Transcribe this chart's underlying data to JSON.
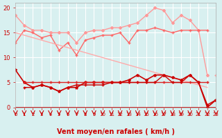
{
  "x": [
    0,
    1,
    2,
    3,
    4,
    5,
    6,
    7,
    8,
    9,
    10,
    11,
    12,
    13,
    14,
    15,
    16,
    17,
    18,
    19,
    20,
    21,
    22,
    23
  ],
  "series": [
    {
      "name": "line1_light",
      "color": "#ff9999",
      "linewidth": 1.0,
      "marker": "D",
      "markersize": 2,
      "y": [
        18.5,
        16.5,
        15.5,
        15.5,
        15.0,
        15.0,
        15.0,
        13.0,
        15.0,
        15.5,
        15.5,
        16.0,
        16.0,
        16.5,
        17.0,
        18.5,
        20.0,
        19.5,
        17.0,
        18.5,
        17.5,
        15.5,
        6.5,
        null
      ]
    },
    {
      "name": "line2_light",
      "color": "#ff9999",
      "linewidth": 1.0,
      "marker": "+",
      "markersize": 3,
      "y": [
        null,
        null,
        null,
        null,
        null,
        null,
        null,
        null,
        null,
        null,
        null,
        null,
        null,
        null,
        null,
        null,
        null,
        null,
        null,
        null,
        null,
        null,
        null,
        6.5
      ]
    },
    {
      "name": "line3_medium",
      "color": "#ff6666",
      "linewidth": 1.0,
      "marker": "+",
      "markersize": 3,
      "y": [
        13.0,
        15.5,
        15.0,
        14.0,
        14.5,
        11.5,
        13.0,
        10.5,
        13.5,
        14.0,
        14.5,
        14.5,
        15.0,
        13.0,
        15.5,
        15.5,
        16.0,
        15.5,
        15.0,
        15.5,
        15.5,
        15.5,
        15.5,
        null
      ]
    },
    {
      "name": "line4_diag",
      "color": "#ffaaaa",
      "linewidth": 1.0,
      "marker": null,
      "markersize": 0,
      "y": [
        15.0,
        14.5,
        14.0,
        13.5,
        13.0,
        12.5,
        12.0,
        11.5,
        11.0,
        10.5,
        10.0,
        9.5,
        9.0,
        8.5,
        8.0,
        7.5,
        7.0,
        6.5,
        6.0,
        5.5,
        5.0,
        4.5,
        4.0,
        null
      ]
    },
    {
      "name": "line5_dark_upper",
      "color": "#cc0000",
      "linewidth": 1.2,
      "marker": "*",
      "markersize": 3,
      "y": [
        7.5,
        5.0,
        4.0,
        4.5,
        4.0,
        3.2,
        4.0,
        4.0,
        5.0,
        5.0,
        5.0,
        5.0,
        5.0,
        5.5,
        6.5,
        5.5,
        6.5,
        6.5,
        6.0,
        5.5,
        6.5,
        5.0,
        0.0,
        1.5
      ]
    },
    {
      "name": "line6_dark_mid",
      "color": "#dd2222",
      "linewidth": 1.0,
      "marker": "+",
      "markersize": 3,
      "y": [
        null,
        5.0,
        5.0,
        5.0,
        5.0,
        5.0,
        5.0,
        5.0,
        5.0,
        5.0,
        5.0,
        5.0,
        5.0,
        5.0,
        5.0,
        5.0,
        5.0,
        5.0,
        5.0,
        5.0,
        5.0,
        5.0,
        5.0,
        null
      ]
    },
    {
      "name": "line7_dark_lower",
      "color": "#cc0000",
      "linewidth": 1.0,
      "marker": "+",
      "markersize": 3,
      "y": [
        null,
        4.0,
        4.0,
        4.5,
        4.0,
        3.2,
        4.0,
        4.5,
        4.5,
        4.5,
        4.5,
        5.0,
        5.0,
        5.0,
        5.0,
        5.0,
        5.0,
        6.5,
        5.0,
        5.0,
        6.5,
        5.0,
        0.5,
        1.5
      ]
    }
  ],
  "wind_arrows": [
    0,
    1,
    2,
    3,
    4,
    5,
    6,
    7,
    8,
    9,
    10,
    11,
    12,
    13,
    14,
    15,
    16,
    17,
    18,
    19,
    20,
    21,
    22,
    23
  ],
  "xlabel": "Vent moyen/en rafales ( km/h )",
  "ylim": [
    0,
    21
  ],
  "xlim": [
    0,
    23
  ],
  "yticks": [
    0,
    5,
    10,
    15,
    20
  ],
  "xticks": [
    0,
    1,
    2,
    3,
    4,
    5,
    6,
    7,
    8,
    9,
    10,
    11,
    12,
    13,
    14,
    15,
    16,
    17,
    18,
    19,
    20,
    21,
    22,
    23
  ],
  "bg_color": "#d8f0f0",
  "grid_color": "#ffffff",
  "tick_color": "#cc0000",
  "label_color": "#cc0000",
  "arrow_color": "#cc0000"
}
